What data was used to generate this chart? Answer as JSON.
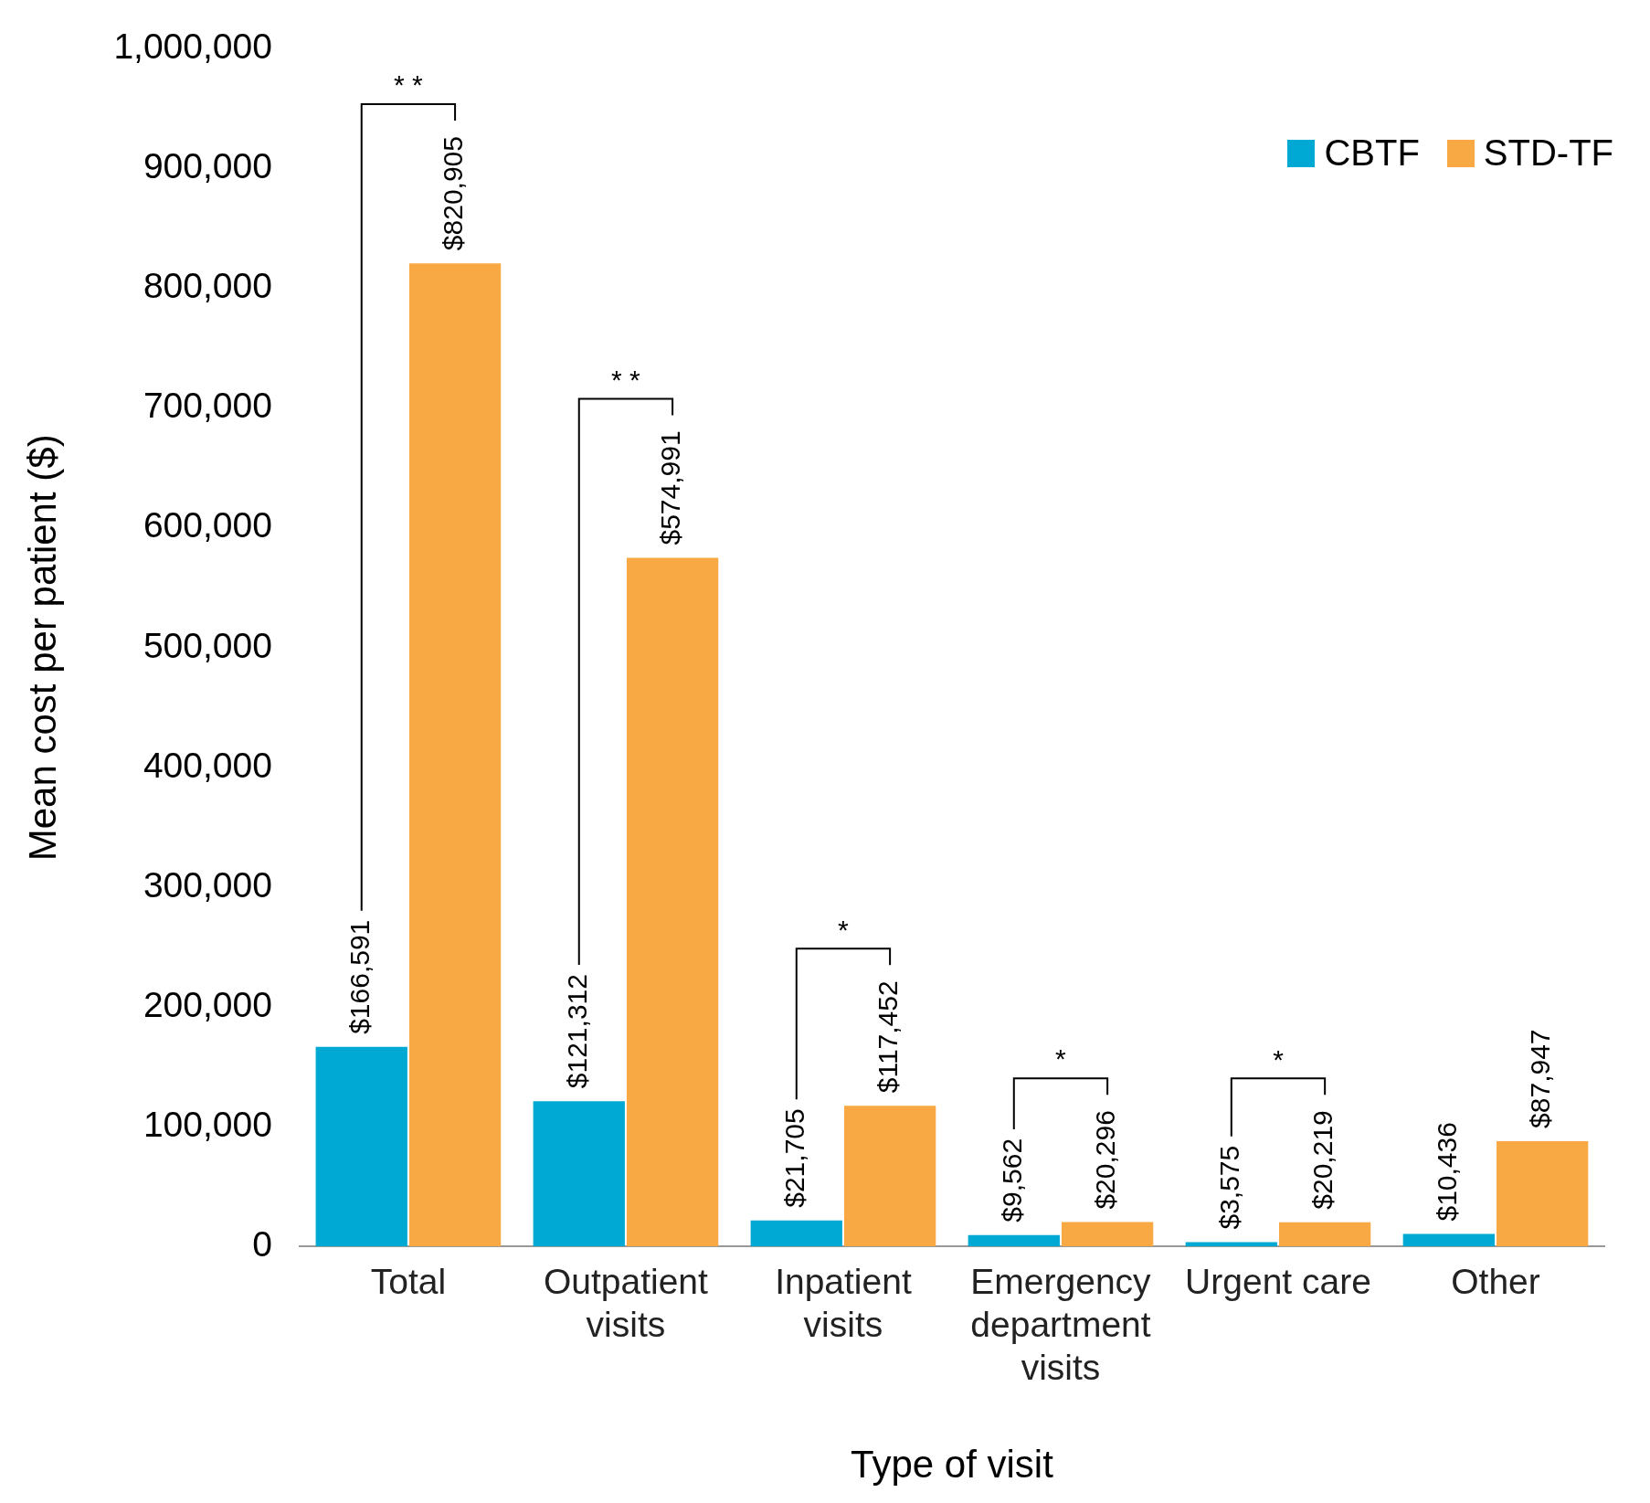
{
  "chart_data": {
    "type": "bar",
    "xlabel": "Type of visit",
    "ylabel": "Mean cost per patient ($)",
    "categories": [
      "Total",
      "Outpatient visits",
      "Inpatient visits",
      "Emergency department visits",
      "Urgent care",
      "Other"
    ],
    "series": [
      {
        "name": "CBTF",
        "color": "#00a8d4",
        "values": [
          166591,
          121312,
          21705,
          9562,
          3575,
          10436
        ],
        "value_labels": [
          "$166,591",
          "$121,312",
          "$21,705",
          "$9,562",
          "$3,575",
          "$10,436"
        ]
      },
      {
        "name": "STD-TF",
        "color": "#f9a944",
        "values": [
          820905,
          574991,
          117452,
          20296,
          20219,
          87947
        ],
        "value_labels": [
          "$820,905",
          "$574,991",
          "$117,452",
          "$20,296",
          "$20,219",
          "$87,947"
        ]
      }
    ],
    "ylim": [
      0,
      1000000
    ],
    "yticks": [
      0,
      {
        "value": 100000,
        "label": "100,000"
      },
      {
        "value": 200000,
        "label": "200,000"
      },
      {
        "value": 300000,
        "label": "300,000"
      },
      {
        "value": 400000,
        "label": "400,000"
      },
      {
        "value": 500000,
        "label": "500,000"
      },
      {
        "value": 600000,
        "label": "600,000"
      },
      {
        "value": 700000,
        "label": "700,000"
      },
      {
        "value": 800000,
        "label": "800,000"
      },
      {
        "value": 900000,
        "label": "900,000"
      },
      {
        "value": 1000000,
        "label": "1,000,000"
      }
    ],
    "grid": false,
    "legend": "top right",
    "annotations": [
      "* *",
      "* *",
      "*",
      "*",
      "*"
    ]
  }
}
